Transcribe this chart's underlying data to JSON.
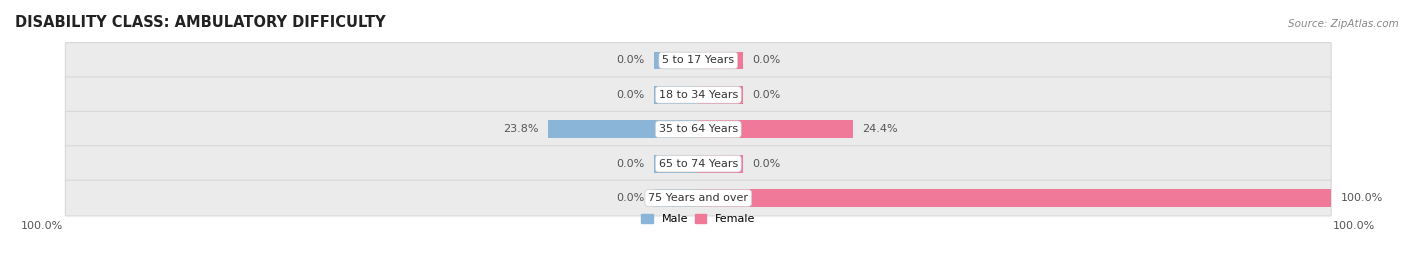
{
  "title": "DISABILITY CLASS: AMBULATORY DIFFICULTY",
  "source": "Source: ZipAtlas.com",
  "categories": [
    "5 to 17 Years",
    "18 to 34 Years",
    "35 to 64 Years",
    "65 to 74 Years",
    "75 Years and over"
  ],
  "male_values": [
    0.0,
    0.0,
    23.8,
    0.0,
    0.0
  ],
  "female_values": [
    0.0,
    0.0,
    24.4,
    0.0,
    100.0
  ],
  "male_color": "#8ab4d8",
  "female_color": "#f07898",
  "row_bg_color": "#ebebeb",
  "row_bg_edge_color": "#d8d8d8",
  "max_val": 100.0,
  "title_fontsize": 10.5,
  "label_fontsize": 8.0,
  "tick_fontsize": 8.0,
  "source_fontsize": 7.5,
  "stub_size": 7.0
}
